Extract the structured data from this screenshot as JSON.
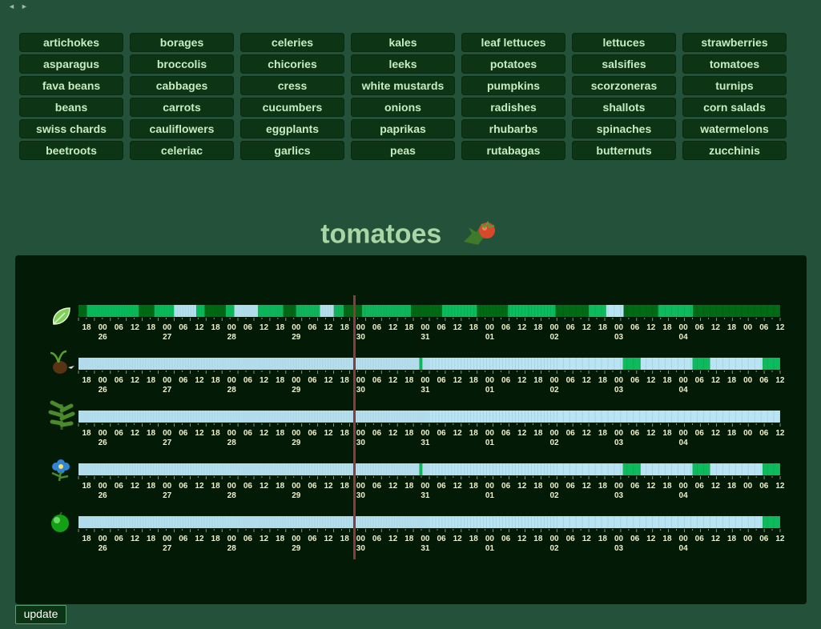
{
  "vegetables": [
    "artichokes",
    "borages",
    "celeries",
    "kales",
    "leaf lettuces",
    "lettuces",
    "strawberries",
    "asparagus",
    "broccolis",
    "chicories",
    "leeks",
    "potatoes",
    "salsifies",
    "tomatoes",
    "fava beans",
    "cabbages",
    "cress",
    "white mustards",
    "pumpkins",
    "scorzoneras",
    "turnips",
    "beans",
    "carrots",
    "cucumbers",
    "onions",
    "radishes",
    "shallots",
    "corn salads",
    "swiss chards",
    "cauliflowers",
    "eggplants",
    "paprikas",
    "rhubarbs",
    "spinaches",
    "watermelons",
    "beetroots",
    "celeriac",
    "garlics",
    "peas",
    "rutabagas",
    "butternuts",
    "zucchinis"
  ],
  "title": "tomatoes",
  "update_label": "update",
  "timeline": {
    "hour_labels": [
      "18",
      "00",
      "06",
      "12",
      "18",
      "00",
      "06",
      "12",
      "18",
      "00",
      "06",
      "12",
      "18",
      "00",
      "06",
      "12",
      "18",
      "00",
      "06",
      "12",
      "18",
      "00",
      "06",
      "12",
      "18",
      "00",
      "06",
      "12",
      "18",
      "00",
      "06",
      "12",
      "18",
      "00",
      "06",
      "12",
      "18",
      "00",
      "06",
      "12",
      "18",
      "00",
      "06",
      "12"
    ],
    "day_labels": [
      "26",
      "27",
      "28",
      "29",
      "30",
      "31",
      "01",
      "02",
      "03",
      "04"
    ],
    "day_label_hour_index": [
      1,
      5,
      9,
      13,
      17,
      21,
      25,
      29,
      33,
      37
    ]
  },
  "rows": [
    {
      "name": "leaf",
      "icon": "leaf-icon",
      "colors": [
        "#006a14",
        "#0dbb5c",
        "#b8e4f4"
      ],
      "segments": [
        [
          0.0,
          0.012,
          0
        ],
        [
          0.012,
          0.086,
          1
        ],
        [
          0.086,
          0.108,
          0
        ],
        [
          0.108,
          0.136,
          1
        ],
        [
          0.136,
          0.168,
          2
        ],
        [
          0.168,
          0.18,
          1
        ],
        [
          0.18,
          0.21,
          0
        ],
        [
          0.21,
          0.222,
          1
        ],
        [
          0.222,
          0.256,
          2
        ],
        [
          0.256,
          0.292,
          1
        ],
        [
          0.292,
          0.31,
          0
        ],
        [
          0.31,
          0.344,
          1
        ],
        [
          0.344,
          0.364,
          2
        ],
        [
          0.364,
          0.378,
          1
        ],
        [
          0.378,
          0.404,
          0
        ],
        [
          0.404,
          0.408,
          1
        ],
        [
          0.408,
          0.474,
          1
        ],
        [
          0.474,
          0.518,
          0
        ],
        [
          0.518,
          0.568,
          1
        ],
        [
          0.568,
          0.612,
          0
        ],
        [
          0.612,
          0.642,
          1
        ],
        [
          0.642,
          0.68,
          1
        ],
        [
          0.68,
          0.727,
          0
        ],
        [
          0.727,
          0.752,
          1
        ],
        [
          0.752,
          0.777,
          2
        ],
        [
          0.777,
          0.826,
          0
        ],
        [
          0.826,
          0.876,
          1
        ],
        [
          0.876,
          1.0,
          0
        ]
      ]
    },
    {
      "name": "germination",
      "icon": "seed-sprout-icon",
      "colors": [
        "#b8e4f4",
        "#0dbb5c"
      ],
      "segments": [
        [
          0.0,
          0.486,
          0
        ],
        [
          0.486,
          0.49,
          1
        ],
        [
          0.49,
          0.776,
          0
        ],
        [
          0.776,
          0.801,
          1
        ],
        [
          0.801,
          0.875,
          0
        ],
        [
          0.875,
          0.9,
          1
        ],
        [
          0.9,
          0.975,
          0
        ],
        [
          0.975,
          1.0,
          1
        ]
      ]
    },
    {
      "name": "growth",
      "icon": "plant-icon",
      "colors": [
        "#b8e4f4"
      ],
      "segments": [
        [
          0.0,
          1.0,
          0
        ]
      ]
    },
    {
      "name": "flowering",
      "icon": "flower-icon",
      "colors": [
        "#b8e4f4",
        "#0dbb5c"
      ],
      "segments": [
        [
          0.0,
          0.486,
          0
        ],
        [
          0.486,
          0.49,
          1
        ],
        [
          0.49,
          0.776,
          0
        ],
        [
          0.776,
          0.801,
          1
        ],
        [
          0.801,
          0.875,
          0
        ],
        [
          0.875,
          0.9,
          1
        ],
        [
          0.9,
          0.975,
          0
        ],
        [
          0.975,
          1.0,
          1
        ]
      ]
    },
    {
      "name": "fruiting",
      "icon": "green-fruit-icon",
      "colors": [
        "#b8e4f4",
        "#0dbb5c"
      ],
      "segments": [
        [
          0.0,
          0.975,
          0
        ],
        [
          0.975,
          1.0,
          1
        ]
      ]
    }
  ]
}
